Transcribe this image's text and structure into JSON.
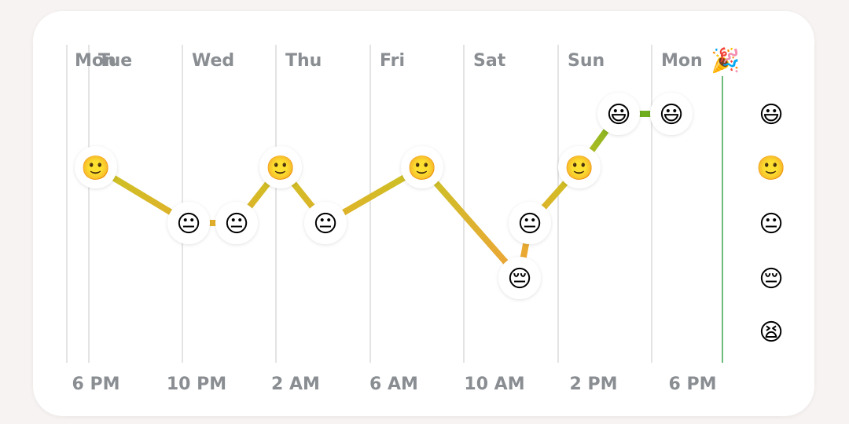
{
  "chart_data": {
    "type": "line",
    "days": [
      {
        "label": "Mon"
      },
      {
        "label": "Tue"
      },
      {
        "label": "Wed"
      },
      {
        "label": "Thu"
      },
      {
        "label": "Fri"
      },
      {
        "label": "Sat"
      },
      {
        "label": "Sun"
      },
      {
        "label": "Mon"
      }
    ],
    "time_ticks": [
      "6 PM",
      "10 PM",
      "2 AM",
      "6 AM",
      "10 AM",
      "2 PM",
      "6 PM"
    ],
    "y_levels": [
      {
        "value": 5,
        "emoji": "😃",
        "color": "#6fae1f"
      },
      {
        "value": 4,
        "emoji": "🙂",
        "color": "#c9c324"
      },
      {
        "value": 3,
        "emoji": "😐",
        "color": "#e3b02a"
      },
      {
        "value": 2,
        "emoji": "😔",
        "color": "#f0a339"
      },
      {
        "value": 1,
        "emoji": "😫",
        "color": "#e56a4f"
      }
    ],
    "series": [
      {
        "points": [
          {
            "x": "Mon 7 PM",
            "y": 4
          },
          {
            "x": "Tue 11 PM",
            "y": 3
          },
          {
            "x": "Wed 1 AM",
            "y": 3
          },
          {
            "x": "Wed 3 AM",
            "y": 4
          },
          {
            "x": "Wed 5 AM",
            "y": 3
          },
          {
            "x": "Wed 10 AM",
            "y": 4
          },
          {
            "x": "Thu 11 AM",
            "y": 2
          },
          {
            "x": "Thu 12 PM",
            "y": 3
          },
          {
            "x": "Fri 2 PM",
            "y": 4
          },
          {
            "x": "Sat 3 PM",
            "y": 5
          },
          {
            "x": "Sun 5 PM",
            "y": 5
          }
        ]
      }
    ],
    "current_marker": {
      "emoji": "🎉",
      "color": "#6dbb7a"
    },
    "grid": true
  }
}
